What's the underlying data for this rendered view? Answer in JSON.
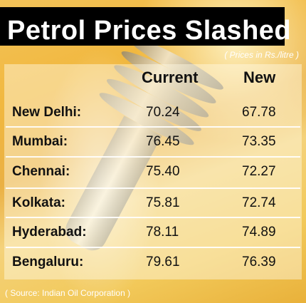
{
  "title": "Petrol Prices Slashed",
  "units_note": "( Prices in Rs./litre )",
  "columns": {
    "current": "Current",
    "new": "New"
  },
  "rows": [
    {
      "city": "New Delhi:",
      "current": "70.24",
      "new": "67.78"
    },
    {
      "city": "Mumbai:",
      "current": "76.45",
      "new": "73.35"
    },
    {
      "city": "Chennai:",
      "current": "75.40",
      "new": "72.27"
    },
    {
      "city": "Kolkata:",
      "current": "75.81",
      "new": "72.74"
    },
    {
      "city": "Hyderabad:",
      "current": "78.11",
      "new": "74.89"
    },
    {
      "city": "Bengaluru:",
      "current": "79.61",
      "new": "76.39"
    }
  ],
  "source": "( Source: Indian Oil Corporation )"
}
